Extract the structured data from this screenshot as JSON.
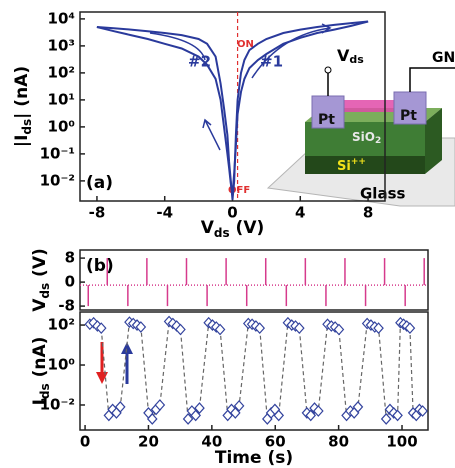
{
  "chart_data": [
    {
      "type": "line",
      "log_y": true,
      "color": "#2a3a9c",
      "xlim": [
        -9,
        9
      ],
      "xticks": [
        -8,
        -4,
        0,
        4,
        8
      ],
      "ylim": [
        0.0018,
        18000
      ],
      "yticks": [
        {
          "value": 0.01,
          "label": "10⁻²"
        },
        {
          "value": 0.1,
          "label": "10⁻¹"
        },
        {
          "value": 1,
          "label": "10⁰"
        },
        {
          "value": 10,
          "label": "10¹"
        },
        {
          "value": 100,
          "label": "10²"
        },
        {
          "value": 1000,
          "label": "10³"
        },
        {
          "value": 10000,
          "label": "10⁴"
        }
      ],
      "xlabel": [
        "V",
        "ds",
        " (V)"
      ],
      "ylabel": [
        "|I",
        "ds",
        "| (nA)"
      ],
      "panel_label": "(a)",
      "reference_x": 0.3,
      "reference_color": "#e03030",
      "annotations": {
        "on": "ON",
        "off": "OFF",
        "sweep1": "#1",
        "sweep2": "#2"
      },
      "inset": {
        "vds": [
          "V",
          "ds"
        ],
        "gnd": "GN",
        "pt_left": "Pt",
        "pt_right": "Pt",
        "sio2": [
          "SiO",
          "2"
        ],
        "si": [
          "Si",
          "++"
        ],
        "glass": "Glass"
      },
      "series": [
        {
          "x": [
            -8,
            -7,
            -6,
            -5,
            -4,
            -3,
            -2,
            -1.5,
            -1,
            -0.7,
            -0.5,
            -0.3,
            -0.2,
            -0.1,
            0,
            0.1,
            0.2,
            0.3,
            0.5,
            0.7,
            1,
            1.5,
            2,
            3,
            4,
            5,
            6,
            7,
            8
          ],
          "values": [
            5000,
            4500,
            4000,
            3500,
            3000,
            2500,
            1800,
            1200,
            400,
            40,
            5,
            0.5,
            0.05,
            0.01,
            0.002,
            0.01,
            0.5,
            10,
            100,
            300,
            700,
            1200,
            1800,
            3000,
            4000,
            5000,
            6000,
            7000,
            8000
          ]
        },
        {
          "x": [
            -8,
            -7,
            -6,
            -5,
            -4,
            -3,
            -2,
            -1.5,
            -1,
            -0.7,
            -0.5,
            -0.3,
            -0.2,
            -0.1,
            0,
            0.1,
            0.2,
            0.3,
            0.5,
            0.7,
            1,
            1.5,
            2,
            3,
            4,
            5,
            6,
            7,
            8
          ],
          "values": [
            5000,
            3500,
            2500,
            1800,
            1200,
            800,
            400,
            200,
            60,
            10,
            1,
            0.1,
            0.03,
            0.008,
            0.003,
            0.02,
            0.2,
            3,
            20,
            60,
            150,
            300,
            500,
            1200,
            2000,
            3000,
            4000,
            5500,
            8000
          ]
        }
      ]
    },
    {
      "type": "impulse",
      "color": "#d63a8c",
      "xlim": [
        -1.6,
        108.2
      ],
      "ylim": [
        -9.3,
        10.7
      ],
      "yticks": [
        -8,
        0,
        8
      ],
      "ylabel": [
        "V",
        "ds",
        " (V)"
      ],
      "panel_label": "(b)",
      "baseline": -1,
      "x": [
        1,
        7,
        13.5,
        19.5,
        26,
        32,
        38.5,
        44.5,
        51,
        57,
        63.5,
        69.5,
        76,
        82,
        88.5,
        94.5,
        101,
        107
      ],
      "values": [
        -8,
        8,
        -8,
        8,
        -8,
        8,
        -8,
        8,
        -8,
        8,
        -8,
        8,
        -8,
        8,
        -8,
        8,
        -8,
        8
      ]
    },
    {
      "type": "scatter",
      "log_y": true,
      "color": "#34449e",
      "line_color": "#666666",
      "xlim": [
        -1.6,
        108.2
      ],
      "xticks": [
        0,
        20,
        40,
        60,
        80,
        100
      ],
      "ylim": [
        0.00056,
        450
      ],
      "yticks": [
        {
          "value": 0.01,
          "label": "10⁻²"
        },
        {
          "value": 1,
          "label": "10⁰"
        },
        {
          "value": 100,
          "label": "10²"
        }
      ],
      "xlabel": "Time (s)",
      "ylabel": [
        "I",
        "ds",
        " (nA)"
      ],
      "x": [
        1.5,
        2.7,
        3.9,
        5.1,
        7.5,
        8.7,
        9.9,
        11.1,
        14,
        15.2,
        16.4,
        17.6,
        20,
        21.2,
        22.4,
        23.6,
        26.5,
        27.7,
        28.9,
        30.1,
        32.5,
        33.7,
        34.9,
        36.1,
        39,
        40.2,
        41.4,
        42.6,
        45,
        46.2,
        47.4,
        48.6,
        51.5,
        52.7,
        53.9,
        55.1,
        57.5,
        58.7,
        59.9,
        61.1,
        64,
        65.2,
        66.4,
        67.6,
        70,
        71.2,
        72.4,
        73.6,
        76.5,
        77.7,
        78.9,
        80.1,
        82.5,
        83.7,
        84.9,
        86.1,
        89,
        90.2,
        91.4,
        92.6,
        95,
        96.2,
        97.4,
        98.6,
        99.5,
        100.5,
        101.5,
        102.5,
        103.5,
        104.5,
        105.5,
        106.5
      ],
      "values": [
        110,
        130,
        90,
        70,
        0.003,
        0.006,
        0.004,
        0.008,
        140,
        120,
        100,
        80,
        0.004,
        0.002,
        0.006,
        0.01,
        150,
        120,
        90,
        60,
        0.002,
        0.005,
        0.003,
        0.007,
        130,
        100,
        80,
        60,
        0.003,
        0.006,
        0.004,
        0.009,
        120,
        110,
        90,
        70,
        0.002,
        0.004,
        0.006,
        0.003,
        130,
        100,
        90,
        70,
        0.004,
        0.003,
        0.007,
        0.005,
        110,
        90,
        80,
        60,
        0.003,
        0.005,
        0.004,
        0.008,
        120,
        100,
        80,
        70,
        0.002,
        0.006,
        0.004,
        0.003,
        130,
        110,
        90,
        70,
        0.004,
        0.003,
        0.006,
        0.005
      ]
    }
  ]
}
